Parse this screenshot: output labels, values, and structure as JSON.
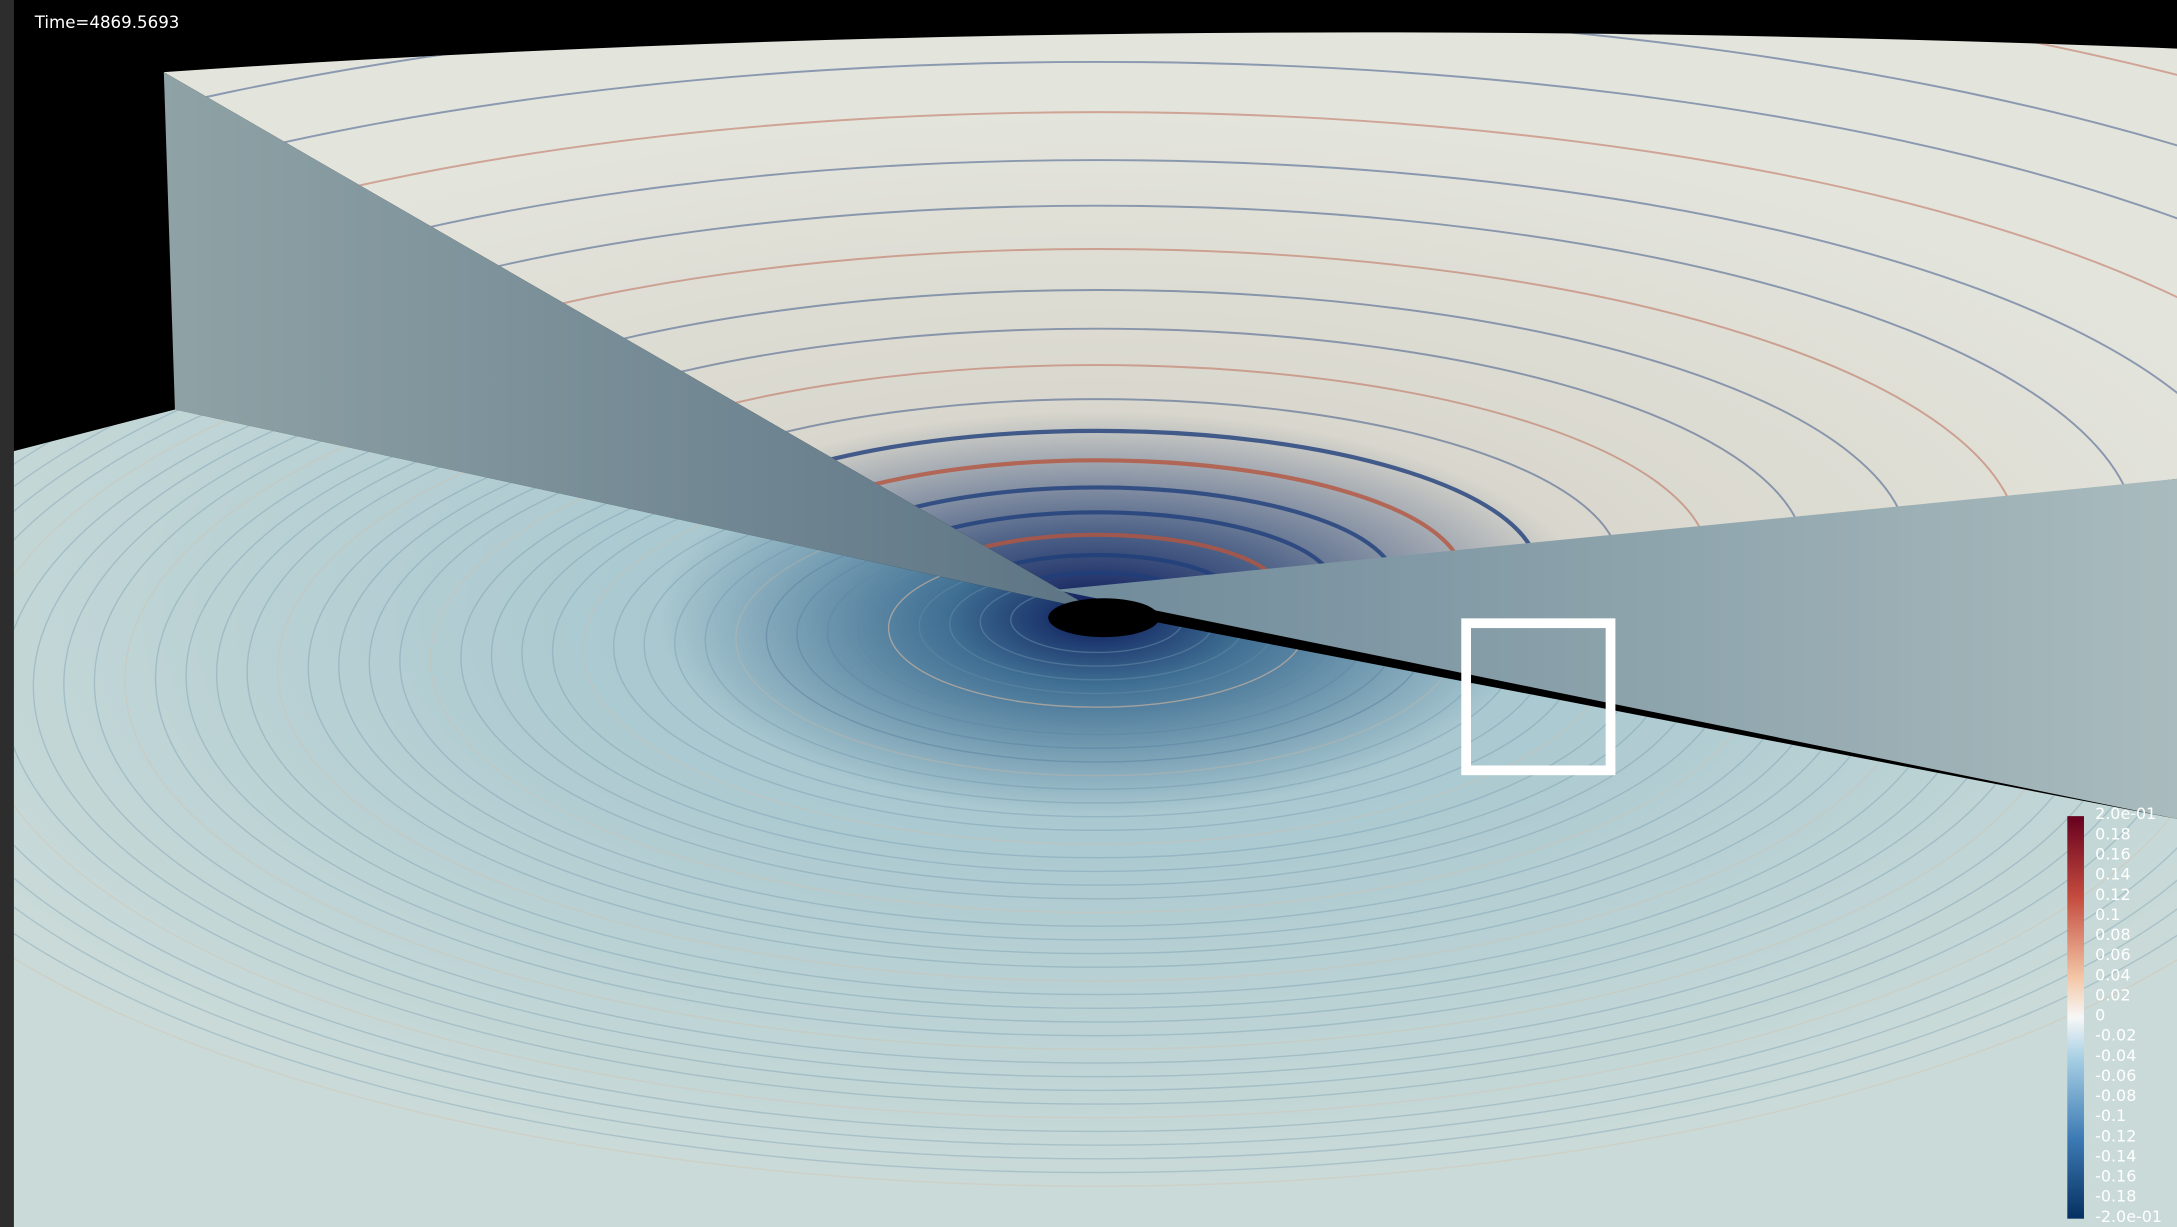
{
  "overlay": {
    "time_label": "Time=4869.5693"
  },
  "colorbar": {
    "labels": [
      "2.0e-01",
      "0.18",
      "0.16",
      "0.14",
      "0.12",
      "0.1",
      "0.08",
      "0.06",
      "0.04",
      "0.02",
      "0",
      "-0.02",
      "-0.04",
      "-0.06",
      "-0.08",
      "-0.1",
      "-0.12",
      "-0.14",
      "-0.16",
      "-0.18",
      "-2.0e-01"
    ]
  }
}
